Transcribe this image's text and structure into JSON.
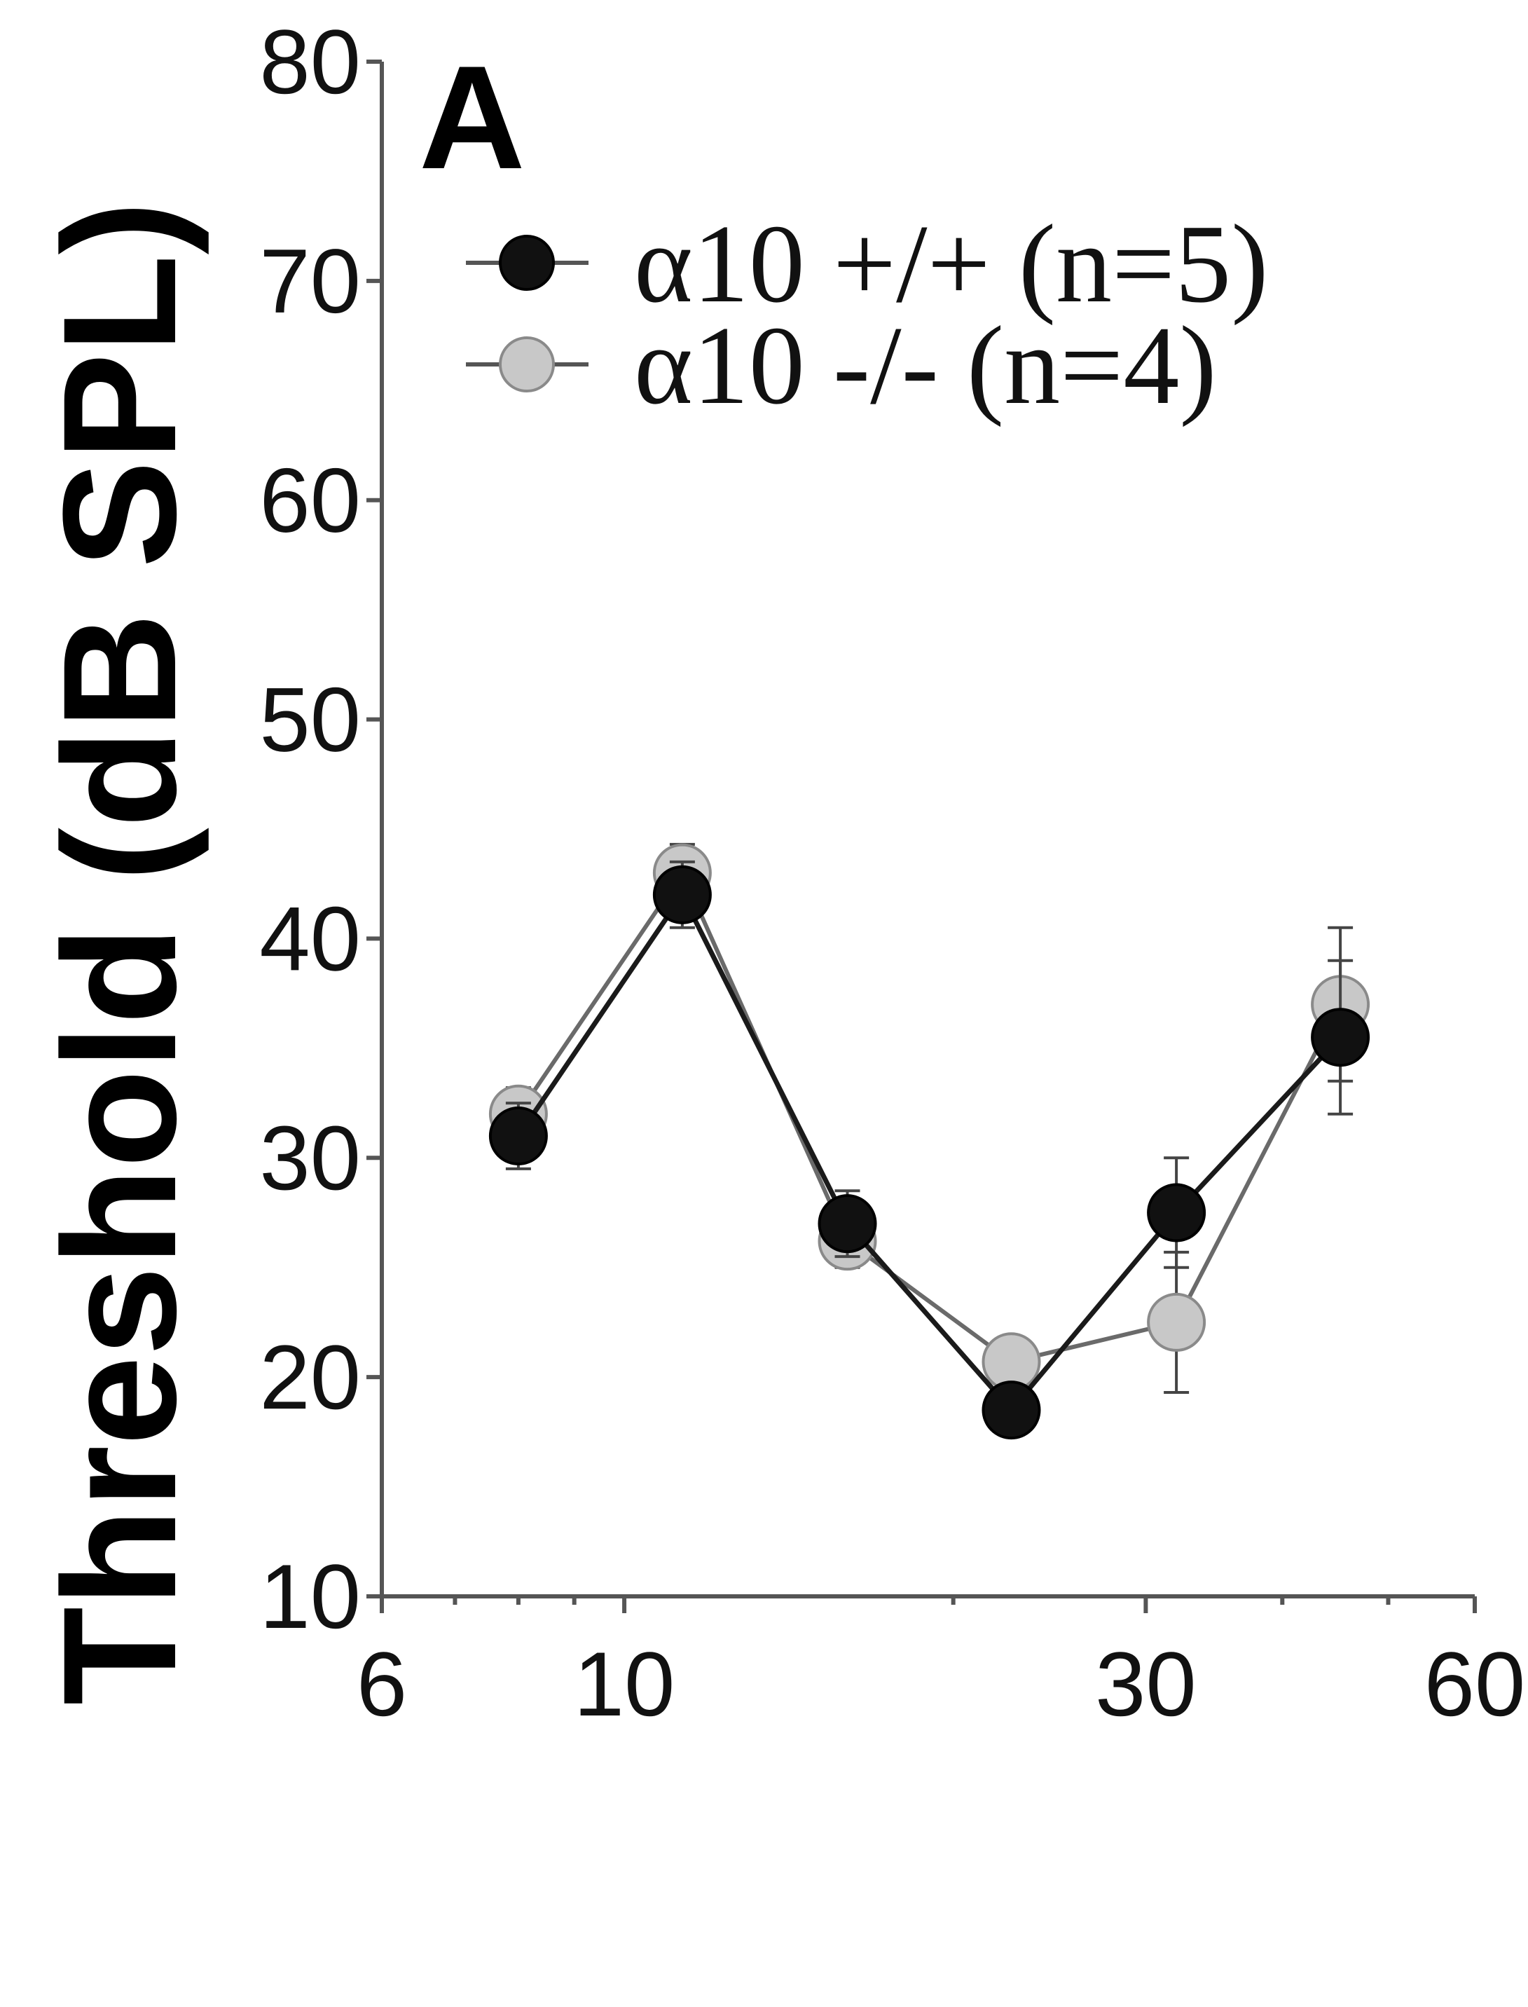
{
  "chart_data": {
    "type": "line",
    "panel_label": "A",
    "ylabel": "Threshold (dB SPL)",
    "xlabel": "",
    "xscale": "log",
    "xlim": [
      6,
      60
    ],
    "ylim": [
      10,
      80
    ],
    "x_ticks": [
      6,
      10,
      30,
      60
    ],
    "x_tick_labels": [
      "6",
      "10",
      "30",
      "60"
    ],
    "y_ticks": [
      10,
      20,
      30,
      40,
      50,
      60,
      70,
      80
    ],
    "y_tick_labels": [
      "10",
      "20",
      "30",
      "40",
      "50",
      "60",
      "70",
      "80"
    ],
    "grid": false,
    "legend_position": "top",
    "x": [
      8.0,
      11.3,
      16.0,
      22.6,
      32.0,
      45.2
    ],
    "series": [
      {
        "name": "α10 +/+ (n=5)",
        "values": [
          31,
          42,
          27,
          18.5,
          27.5,
          35.5
        ],
        "errors": [
          1.5,
          1.5,
          1.5,
          0.8,
          2.5,
          3.5
        ],
        "color": "#111111"
      },
      {
        "name": "α10 -/- (n=4)",
        "values": [
          32,
          43,
          26.2,
          20.7,
          22.5,
          37
        ],
        "errors": [
          1.2,
          1.3,
          1.2,
          0.8,
          3.2,
          3.5
        ],
        "color": "#c8c8c8"
      }
    ]
  }
}
